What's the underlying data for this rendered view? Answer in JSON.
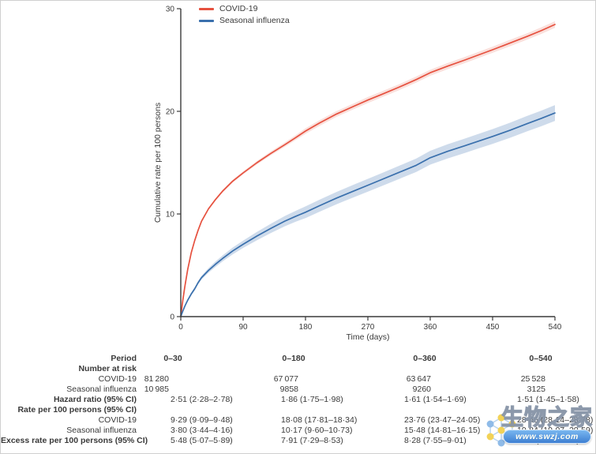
{
  "chart_data": {
    "type": "line",
    "title": "",
    "xlabel": "Time (days)",
    "ylabel": "Cumulative rate per 100 persons",
    "xlim": [
      0,
      540
    ],
    "ylim": [
      0,
      30
    ],
    "xticks": [
      0,
      90,
      180,
      270,
      360,
      450,
      540
    ],
    "yticks": [
      0,
      10,
      20,
      30
    ],
    "grid": false,
    "legend_position": "top-left",
    "axis_color": "#3a3a3a",
    "x": [
      0,
      3,
      6,
      10,
      15,
      20,
      25,
      30,
      40,
      50,
      60,
      75,
      90,
      110,
      130,
      150,
      165,
      180,
      200,
      225,
      250,
      270,
      290,
      315,
      340,
      360,
      385,
      410,
      430,
      450,
      475,
      500,
      520,
      540
    ],
    "series": [
      {
        "name": "COVID-19",
        "color": "#e6513f",
        "band_color": "rgba(230,81,63,0.18)",
        "y": [
          0,
          1.6,
          3.0,
          4.6,
          6.2,
          7.4,
          8.4,
          9.29,
          10.5,
          11.4,
          12.2,
          13.2,
          14.0,
          15.0,
          15.9,
          16.75,
          17.4,
          18.08,
          18.85,
          19.75,
          20.5,
          21.1,
          21.65,
          22.35,
          23.1,
          23.76,
          24.4,
          25.0,
          25.5,
          26.0,
          26.65,
          27.3,
          27.85,
          28.46
        ],
        "ci_halfwidth": [
          0,
          0.03,
          0.04,
          0.05,
          0.06,
          0.07,
          0.08,
          0.1,
          0.11,
          0.12,
          0.13,
          0.14,
          0.15,
          0.17,
          0.19,
          0.21,
          0.23,
          0.27,
          0.27,
          0.28,
          0.28,
          0.29,
          0.29,
          0.29,
          0.29,
          0.29,
          0.3,
          0.3,
          0.3,
          0.3,
          0.31,
          0.31,
          0.32,
          0.32
        ]
      },
      {
        "name": "Seasonal influenza",
        "color": "#3a70ad",
        "band_color": "rgba(80,124,183,0.28)",
        "y": [
          0,
          0.55,
          1.05,
          1.6,
          2.2,
          2.7,
          3.3,
          3.8,
          4.5,
          5.1,
          5.65,
          6.4,
          7.05,
          7.85,
          8.6,
          9.3,
          9.75,
          10.17,
          10.8,
          11.55,
          12.25,
          12.8,
          13.35,
          14.05,
          14.75,
          15.48,
          16.1,
          16.65,
          17.1,
          17.55,
          18.15,
          18.8,
          19.3,
          19.84
        ],
        "ci_halfwidth": [
          0,
          0.05,
          0.08,
          0.11,
          0.14,
          0.16,
          0.17,
          0.18,
          0.22,
          0.26,
          0.29,
          0.33,
          0.36,
          0.41,
          0.45,
          0.5,
          0.53,
          0.57,
          0.585,
          0.6,
          0.61,
          0.62,
          0.63,
          0.645,
          0.66,
          0.67,
          0.69,
          0.7,
          0.71,
          0.72,
          0.735,
          0.75,
          0.76,
          0.77
        ]
      }
    ]
  },
  "risk_table": {
    "rows": [
      {
        "label": "Period",
        "values": [
          "0–30",
          "0–180",
          "0–360",
          "0–540"
        ]
      },
      {
        "label": "Number at risk",
        "values": [
          "",
          "",
          "",
          ""
        ]
      },
      {
        "label": "COVID-19",
        "values": [
          "81 280",
          "67 077",
          "63 647",
          "25 528"
        ]
      },
      {
        "label": "Seasonal influenza",
        "values": [
          "10 985",
          "9858",
          "9260",
          "3125"
        ]
      },
      {
        "label": "Hazard ratio (95% CI)",
        "values": [
          "2·51 (2·28–2·78)",
          "1·86 (1·75–1·98)",
          "1·61 (1·54–1·69)",
          "1·51 (1·45–1·58)"
        ]
      },
      {
        "label": "Rate per 100 persons (95% CI)",
        "values": [
          "",
          "",
          "",
          ""
        ]
      },
      {
        "label": "COVID-19",
        "values": [
          "9·29 (9·09–9·48)",
          "18·08 (17·81–18·34)",
          "23·76 (23·47–24·05)",
          "28·46 (28·14–28·78)"
        ]
      },
      {
        "label": "Seasonal influenza",
        "values": [
          "3·80 (3·44–4·16)",
          "10·17 (9·60–10·73)",
          "15·48 (14·81–16·15)",
          "19·84 (19·07–20·59)"
        ]
      },
      {
        "label": "Excess rate per 100 persons (95% CI)",
        "values": [
          "5·48 (5·07–5·89)",
          "7·91 (7·29–8·53)",
          "8·28 (7·55–9·01)",
          "8·62 (7·55–9·44)"
        ]
      }
    ]
  },
  "watermark": {
    "brand_text": "生物之家",
    "site_text": "www.swzj.com"
  }
}
